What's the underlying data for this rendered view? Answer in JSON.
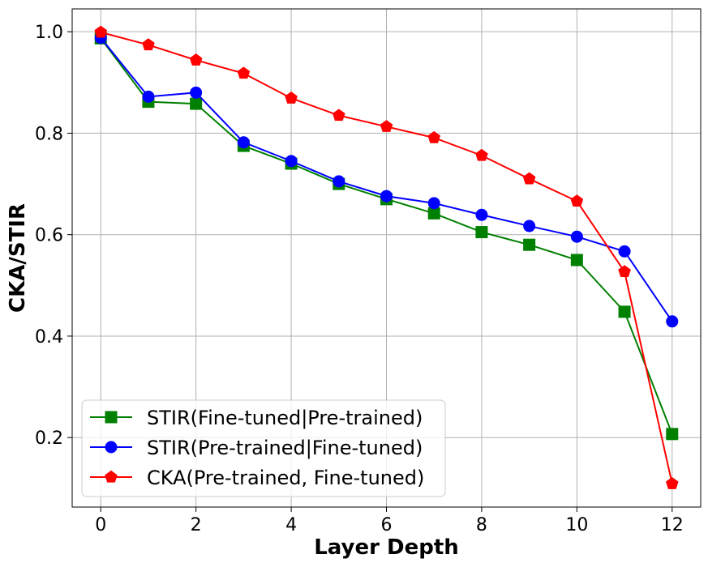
{
  "chart_data": {
    "type": "line",
    "xlabel": "Layer Depth",
    "ylabel": "CKA/STIR",
    "xlim": [
      -0.6,
      12.6
    ],
    "ylim": [
      0.063,
      1.045
    ],
    "xticks": [
      "0",
      "2",
      "4",
      "6",
      "8",
      "10",
      "12"
    ],
    "yticks": [
      "0.2",
      "0.4",
      "0.6",
      "0.8",
      "1.0"
    ],
    "grid": true,
    "legend_position": "lower-left",
    "x": [
      0,
      1,
      2,
      3,
      4,
      5,
      6,
      7,
      8,
      9,
      10,
      11,
      12
    ],
    "series": [
      {
        "name": "STIR(Fine-tuned|Pre-trained)",
        "color": "#008000",
        "marker": "square",
        "values": [
          0.987,
          0.862,
          0.858,
          0.775,
          0.74,
          0.7,
          0.67,
          0.642,
          0.605,
          0.58,
          0.55,
          0.448,
          0.207
        ]
      },
      {
        "name": "STIR(Pre-trained|Fine-tuned)",
        "color": "#0000ff",
        "marker": "circle",
        "values": [
          0.988,
          0.872,
          0.88,
          0.782,
          0.745,
          0.705,
          0.676,
          0.662,
          0.639,
          0.617,
          0.596,
          0.567,
          0.429
        ]
      },
      {
        "name": "CKA(Pre-trained, Fine-tuned)",
        "color": "#ff0000",
        "marker": "pentagon",
        "values": [
          0.999,
          0.974,
          0.944,
          0.918,
          0.869,
          0.835,
          0.813,
          0.791,
          0.756,
          0.71,
          0.666,
          0.527,
          0.109
        ]
      }
    ]
  }
}
